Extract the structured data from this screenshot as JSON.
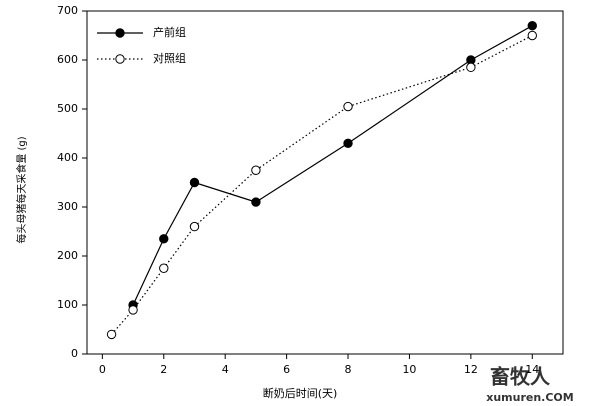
{
  "chart_data": {
    "type": "line",
    "xlabel": "断奶后时间(天)",
    "ylabel": "每头母猪每天采食量 (g)",
    "x": [
      0.3,
      1,
      2,
      3,
      5,
      8,
      12,
      14
    ],
    "series": [
      {
        "name": "产前组",
        "color": "#000000",
        "linestyle": "solid",
        "marker_fill": "#000000",
        "values": [
          null,
          100,
          235,
          350,
          310,
          430,
          600,
          670
        ]
      },
      {
        "name": "对照组",
        "color": "#000000",
        "linestyle": "dotted",
        "marker_fill": "#ffffff",
        "values": [
          40,
          90,
          175,
          260,
          375,
          505,
          585,
          650
        ]
      }
    ],
    "xlim": [
      -0.5,
      15
    ],
    "ylim": [
      0,
      700
    ],
    "xticks": [
      0,
      2,
      4,
      6,
      8,
      10,
      12,
      14
    ],
    "yticks": [
      0,
      100,
      200,
      300,
      400,
      500,
      600,
      700
    ],
    "legend": "upper-left",
    "watermark": [
      "畜牧人",
      "xumuren.COM"
    ]
  }
}
